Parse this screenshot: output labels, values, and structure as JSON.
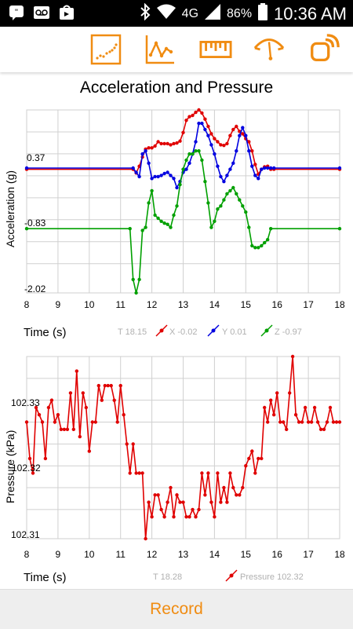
{
  "status_bar": {
    "time": "10:36 AM",
    "battery": "86%",
    "network": "4G",
    "icons": [
      "hangouts-icon",
      "voicemail-icon",
      "play-store-icon",
      "bluetooth-icon",
      "wifi-icon",
      "signal-icon",
      "battery-icon"
    ]
  },
  "toolbar": {
    "accent_color": "#f08c12",
    "buttons": [
      "scatter-plot-icon",
      "line-graph-icon",
      "ruler-icon",
      "gauge-icon",
      "rss-icon"
    ]
  },
  "page": {
    "title": "Acceleration and Pressure"
  },
  "colors": {
    "x": "#e00000",
    "y": "#0000e0",
    "z": "#00a000",
    "pressure": "#e00000",
    "grid": "#d0d0d0"
  },
  "accel_chart": {
    "ylabel": "Acceleration (g)",
    "xlabel": "Time (s)",
    "y_ticks": [
      "0.37",
      "-0.83",
      "-2.02"
    ],
    "x_ticks": [
      "8",
      "9",
      "10",
      "11",
      "12",
      "13",
      "14",
      "15",
      "16",
      "17",
      "18"
    ],
    "legend": {
      "t": "T 18.15",
      "x": "X -0.02",
      "y": "Y 0.01",
      "z": "Z -0.97"
    }
  },
  "pressure_chart": {
    "ylabel": "Pressure (kPa)",
    "xlabel": "Time (s)",
    "y_ticks": [
      "102.33",
      "102.32",
      "102.31"
    ],
    "x_ticks": [
      "8",
      "9",
      "10",
      "11",
      "12",
      "13",
      "14",
      "15",
      "16",
      "17",
      "18"
    ],
    "legend": {
      "t": "T 18.28",
      "p": "Pressure 102.32"
    }
  },
  "chart_data": [
    {
      "type": "line",
      "title": "Acceleration and Pressure",
      "xlabel": "Time (s)",
      "ylabel": "Acceleration (g)",
      "xlim": [
        8,
        18
      ],
      "ylim": [
        -2.02,
        0.97
      ],
      "series": [
        {
          "name": "X",
          "x": [
            8.0,
            11.4,
            11.5,
            11.6,
            11.7,
            11.8,
            11.9,
            12.0,
            12.1,
            12.2,
            12.3,
            12.4,
            12.5,
            12.6,
            12.7,
            12.8,
            12.9,
            13.0,
            13.1,
            13.2,
            13.3,
            13.4,
            13.5,
            13.6,
            13.7,
            13.8,
            13.9,
            14.0,
            14.1,
            14.2,
            14.3,
            14.4,
            14.5,
            14.6,
            14.7,
            14.8,
            14.9,
            15.0,
            15.1,
            15.2,
            15.3,
            15.4,
            15.5,
            15.6,
            15.7,
            15.8,
            15.9,
            18.0
          ],
          "y": [
            0.0,
            0.0,
            -0.06,
            0.05,
            0.2,
            0.33,
            0.35,
            0.35,
            0.38,
            0.45,
            0.42,
            0.42,
            0.42,
            0.4,
            0.42,
            0.43,
            0.46,
            0.6,
            0.8,
            0.86,
            0.88,
            0.93,
            0.97,
            0.92,
            0.82,
            0.7,
            0.58,
            0.5,
            0.45,
            0.4,
            0.39,
            0.42,
            0.55,
            0.65,
            0.7,
            0.62,
            0.58,
            0.5,
            0.45,
            0.3,
            0.08,
            -0.08,
            0.0,
            0.04,
            0.05,
            0.0,
            0.0,
            0.0
          ]
        },
        {
          "name": "Y",
          "x": [
            8.0,
            11.4,
            11.5,
            11.6,
            11.7,
            11.8,
            11.9,
            12.0,
            12.1,
            12.2,
            12.3,
            12.4,
            12.5,
            12.6,
            12.7,
            12.8,
            12.9,
            13.0,
            13.1,
            13.2,
            13.3,
            13.4,
            13.5,
            13.6,
            13.7,
            13.8,
            13.9,
            14.0,
            14.1,
            14.2,
            14.3,
            14.4,
            14.5,
            14.6,
            14.7,
            14.8,
            14.9,
            15.0,
            15.1,
            15.2,
            15.3,
            15.4,
            15.5,
            15.6,
            15.7,
            15.8,
            15.9,
            18.0
          ],
          "y": [
            0.02,
            0.02,
            -0.05,
            -0.12,
            0.25,
            0.3,
            0.1,
            -0.15,
            -0.12,
            -0.12,
            -0.1,
            -0.07,
            -0.05,
            -0.1,
            -0.15,
            -0.3,
            -0.2,
            -0.05,
            0.0,
            0.1,
            0.25,
            0.45,
            0.75,
            0.75,
            0.65,
            0.55,
            0.4,
            0.25,
            0.05,
            -0.12,
            -0.2,
            -0.1,
            0.0,
            0.1,
            0.3,
            0.55,
            0.68,
            0.55,
            0.3,
            0.05,
            -0.1,
            -0.15,
            0.0,
            0.02,
            0.02,
            0.02,
            0.02,
            0.02
          ]
        },
        {
          "name": "Z",
          "x": [
            8.0,
            11.3,
            11.4,
            11.5,
            11.6,
            11.7,
            11.8,
            11.9,
            12.0,
            12.1,
            12.2,
            12.3,
            12.4,
            12.5,
            12.6,
            12.7,
            12.8,
            12.9,
            13.0,
            13.1,
            13.2,
            13.3,
            13.4,
            13.5,
            13.6,
            13.7,
            13.8,
            13.9,
            14.0,
            14.1,
            14.2,
            14.3,
            14.4,
            14.5,
            14.6,
            14.7,
            14.8,
            14.9,
            15.0,
            15.1,
            15.2,
            15.3,
            15.4,
            15.5,
            15.6,
            15.7,
            15.8,
            18.0
          ],
          "y": [
            -0.97,
            -0.97,
            -1.8,
            -2.02,
            -1.8,
            -1.0,
            -0.95,
            -0.55,
            -0.35,
            -0.75,
            -0.8,
            -0.85,
            -0.88,
            -0.9,
            -0.95,
            -0.75,
            -0.6,
            -0.25,
            0.0,
            0.15,
            0.25,
            0.25,
            0.3,
            0.3,
            0.15,
            -0.2,
            -0.55,
            -0.95,
            -0.85,
            -0.65,
            -0.6,
            -0.5,
            -0.4,
            -0.35,
            -0.3,
            -0.4,
            -0.5,
            -0.6,
            -0.7,
            -0.95,
            -1.25,
            -1.28,
            -1.28,
            -1.25,
            -1.2,
            -1.15,
            -0.97,
            -0.97
          ]
        }
      ]
    },
    {
      "type": "line",
      "xlabel": "Time (s)",
      "ylabel": "Pressure (kPa)",
      "xlim": [
        8,
        18
      ],
      "ylim": [
        102.31,
        102.335
      ],
      "series": [
        {
          "name": "Pressure",
          "x": [
            8.0,
            8.1,
            8.2,
            8.3,
            8.4,
            8.5,
            8.6,
            8.7,
            8.8,
            8.9,
            9.0,
            9.1,
            9.2,
            9.3,
            9.4,
            9.5,
            9.6,
            9.7,
            9.8,
            9.9,
            10.0,
            10.1,
            10.2,
            10.3,
            10.4,
            10.5,
            10.6,
            10.7,
            10.8,
            10.9,
            11.0,
            11.1,
            11.2,
            11.3,
            11.4,
            11.5,
            11.6,
            11.7,
            11.8,
            11.9,
            12.0,
            12.1,
            12.2,
            12.3,
            12.4,
            12.5,
            12.6,
            12.7,
            12.8,
            12.9,
            13.0,
            13.1,
            13.2,
            13.3,
            13.4,
            13.5,
            13.6,
            13.7,
            13.8,
            13.9,
            14.0,
            14.1,
            14.2,
            14.3,
            14.4,
            14.5,
            14.6,
            14.7,
            14.8,
            14.9,
            15.0,
            15.1,
            15.2,
            15.3,
            15.4,
            15.5,
            15.6,
            15.7,
            15.8,
            15.9,
            16.0,
            16.1,
            16.2,
            16.3,
            16.4,
            16.5,
            16.6,
            16.7,
            16.8,
            16.9,
            17.0,
            17.1,
            17.2,
            17.3,
            17.4,
            17.5,
            17.6,
            17.7,
            17.8,
            17.9,
            18.0
          ],
          "y": [
            102.326,
            102.321,
            102.319,
            102.328,
            102.327,
            102.326,
            102.321,
            102.328,
            102.329,
            102.326,
            102.327,
            102.325,
            102.325,
            102.325,
            102.33,
            102.325,
            102.333,
            102.324,
            102.33,
            102.328,
            102.322,
            102.326,
            102.326,
            102.331,
            102.329,
            102.331,
            102.331,
            102.331,
            102.329,
            102.326,
            102.331,
            102.327,
            102.323,
            102.319,
            102.323,
            102.319,
            102.319,
            102.319,
            102.31,
            102.315,
            102.313,
            102.316,
            102.316,
            102.314,
            102.313,
            102.315,
            102.317,
            102.313,
            102.316,
            102.315,
            102.315,
            102.313,
            102.313,
            102.314,
            102.313,
            102.314,
            102.319,
            102.316,
            102.319,
            102.315,
            102.313,
            102.319,
            102.315,
            102.317,
            102.315,
            102.319,
            102.317,
            102.316,
            102.316,
            102.317,
            102.32,
            102.321,
            102.322,
            102.319,
            102.321,
            102.321,
            102.328,
            102.326,
            102.329,
            102.327,
            102.33,
            102.326,
            102.326,
            102.325,
            102.33,
            102.335,
            102.327,
            102.326,
            102.326,
            102.328,
            102.326,
            102.326,
            102.328,
            102.326,
            102.325,
            102.325,
            102.326,
            102.328,
            102.326,
            102.326,
            102.326
          ]
        }
      ]
    }
  ],
  "bottom": {
    "record_label": "Record"
  }
}
